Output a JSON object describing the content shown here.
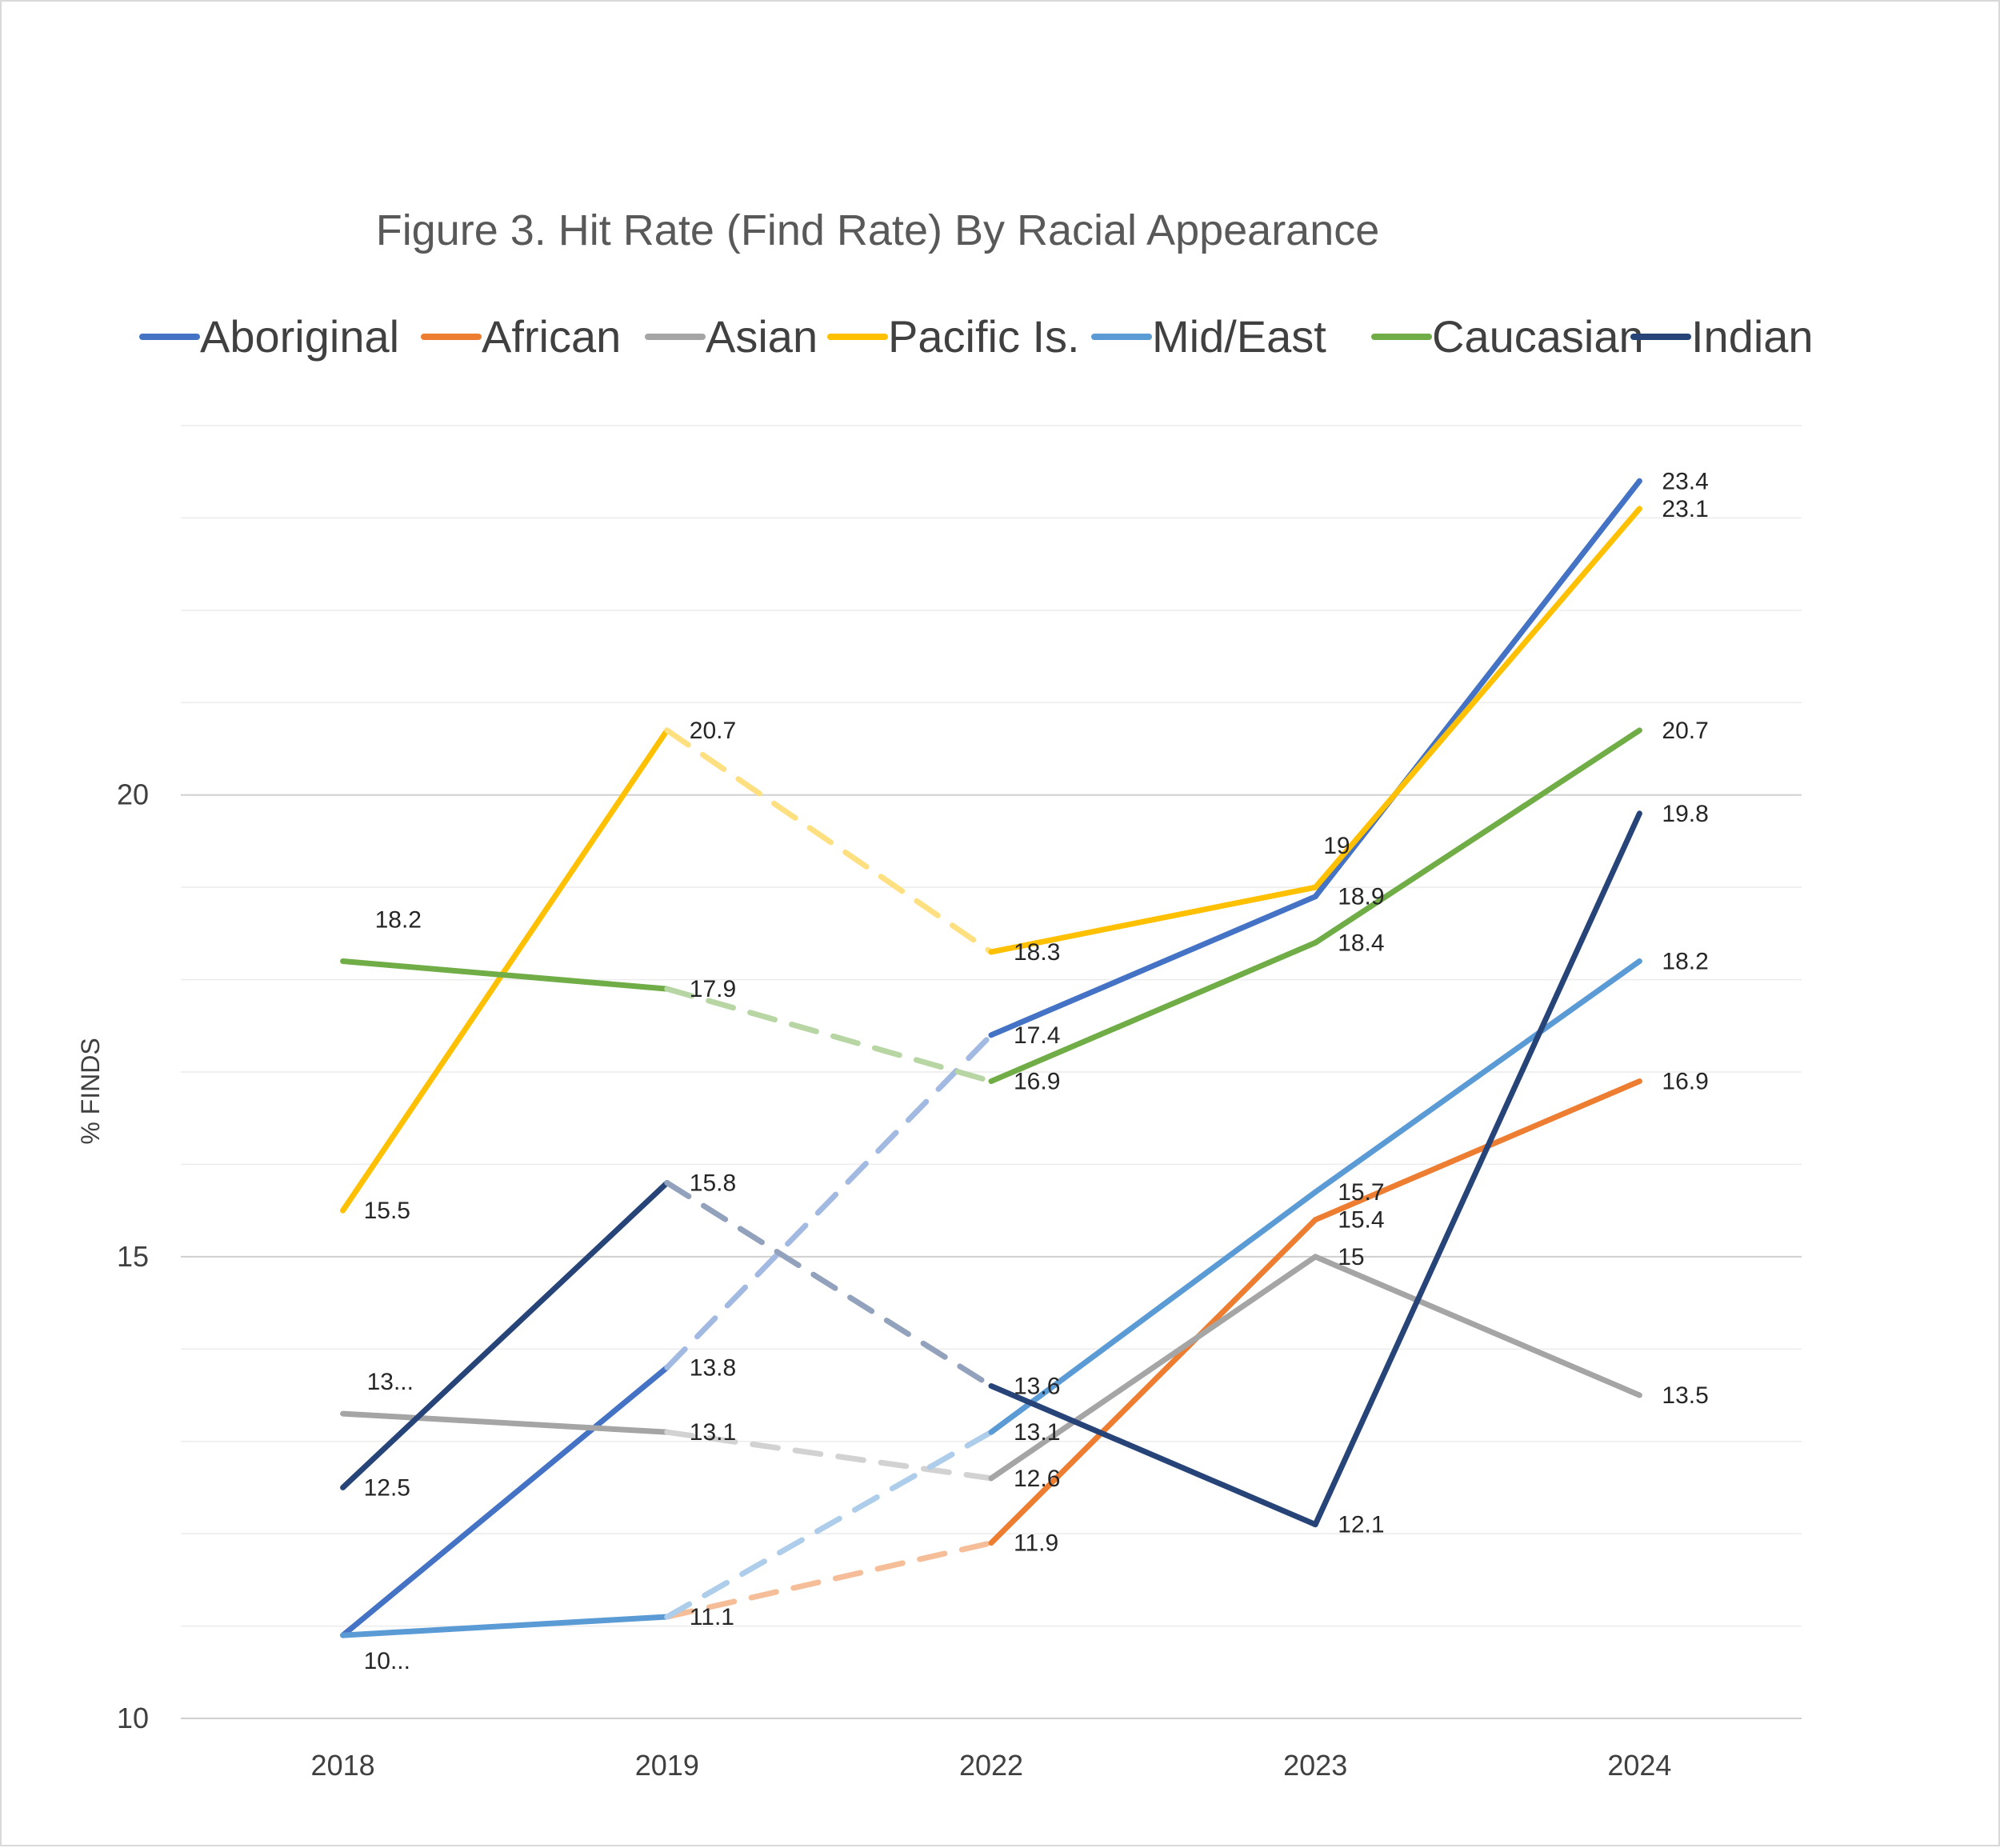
{
  "chart_data": {
    "type": "line",
    "title": "Figure 3. Hit Rate (Find Rate) By Racial Appearance",
    "ylabel": "% FINDS",
    "xlabel": "",
    "categories": [
      "2018",
      "2019",
      "2022",
      "2023",
      "2024"
    ],
    "ylim": [
      10,
      24
    ],
    "yticks": [
      "10",
      "15",
      "20"
    ],
    "grid": true,
    "legend_position": "top",
    "series": [
      {
        "name": "Aboriginal",
        "color": "#4472C4",
        "values": [
          10.9,
          13.8,
          17.4,
          18.9,
          23.4
        ],
        "labels": [
          "10...",
          "13.8",
          "17.4",
          "18.9",
          "23.4"
        ]
      },
      {
        "name": "African",
        "color": "#ED7D31",
        "values": [
          null,
          11.1,
          11.9,
          15.4,
          16.9
        ],
        "labels": [
          "",
          "",
          "11.9",
          "15.4",
          "16.9"
        ]
      },
      {
        "name": "Asian",
        "color": "#A5A5A5",
        "values": [
          13.3,
          13.1,
          12.6,
          15,
          13.5
        ],
        "labels": [
          "13...",
          "13.1",
          "12.6",
          "15",
          "13.5"
        ]
      },
      {
        "name": "Pacific Is.",
        "color": "#FFC000",
        "values": [
          15.5,
          20.7,
          18.3,
          19,
          23.1
        ],
        "labels": [
          "15.5",
          "20.7",
          "18.3",
          "19",
          "23.1"
        ]
      },
      {
        "name": "Mid/East",
        "color": "#5B9BD5",
        "values": [
          10.9,
          11.1,
          13.1,
          15.7,
          18.2
        ],
        "labels": [
          "",
          "11.1",
          "13.1",
          "15.7",
          "18.2"
        ]
      },
      {
        "name": "Caucasian",
        "color": "#70AD47",
        "values": [
          18.2,
          17.9,
          16.9,
          18.4,
          20.7
        ],
        "labels": [
          "18.2",
          "17.9",
          "16.9",
          "18.4",
          "20.7"
        ]
      },
      {
        "name": "Indian",
        "color": "#264478",
        "values": [
          12.5,
          15.8,
          13.6,
          12.1,
          19.8
        ],
        "labels": [
          "12.5",
          "15.8",
          "13.6",
          "12.1",
          "19.8"
        ]
      }
    ]
  }
}
